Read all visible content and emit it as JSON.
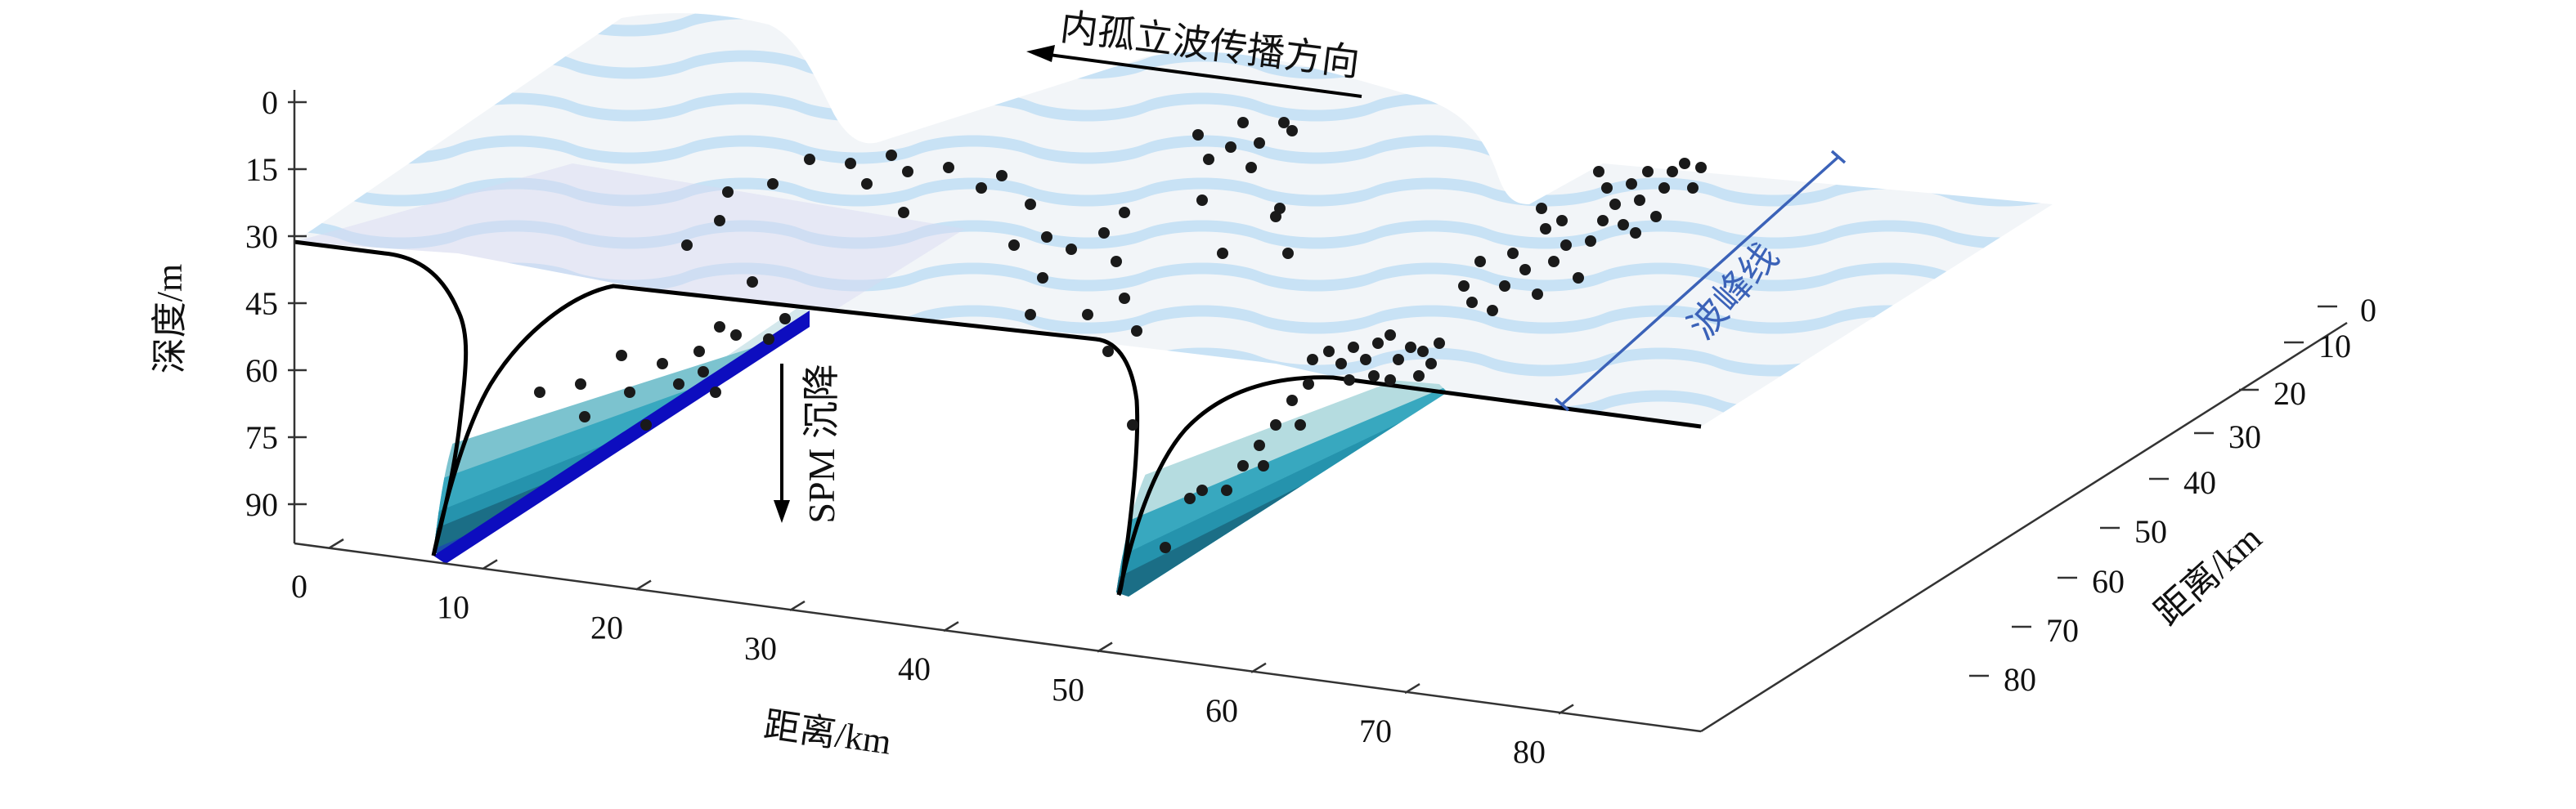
{
  "figure": {
    "annotations": {
      "propagation": "内孤立波传播方向",
      "sinking": "SPM 沉降",
      "crest_line": "波峰线"
    },
    "axes": {
      "depth": {
        "title": "深度/m",
        "ticks": [
          "0",
          "15",
          "30",
          "45",
          "60",
          "75",
          "90"
        ]
      },
      "x": {
        "title": "距离/km",
        "ticks": [
          "0",
          "10",
          "20",
          "30",
          "40",
          "50",
          "60",
          "70",
          "80"
        ]
      },
      "y": {
        "title": "距离/km",
        "ticks": [
          "0",
          "10",
          "20",
          "30",
          "40",
          "50",
          "60",
          "70",
          "80"
        ]
      }
    },
    "colors": {
      "stripe_light": "#c8e2f5",
      "stripe_base": "#f2f5f8",
      "layer_colors": [
        "#1010d0",
        "#1a4fa8",
        "#1b6e86",
        "#2593ad",
        "#38a8bf",
        "#7cc3cf",
        "#b5dce0",
        "#d4e8ec"
      ],
      "crest_line": "#3b62b8",
      "particles": "#1a1a1a"
    }
  }
}
